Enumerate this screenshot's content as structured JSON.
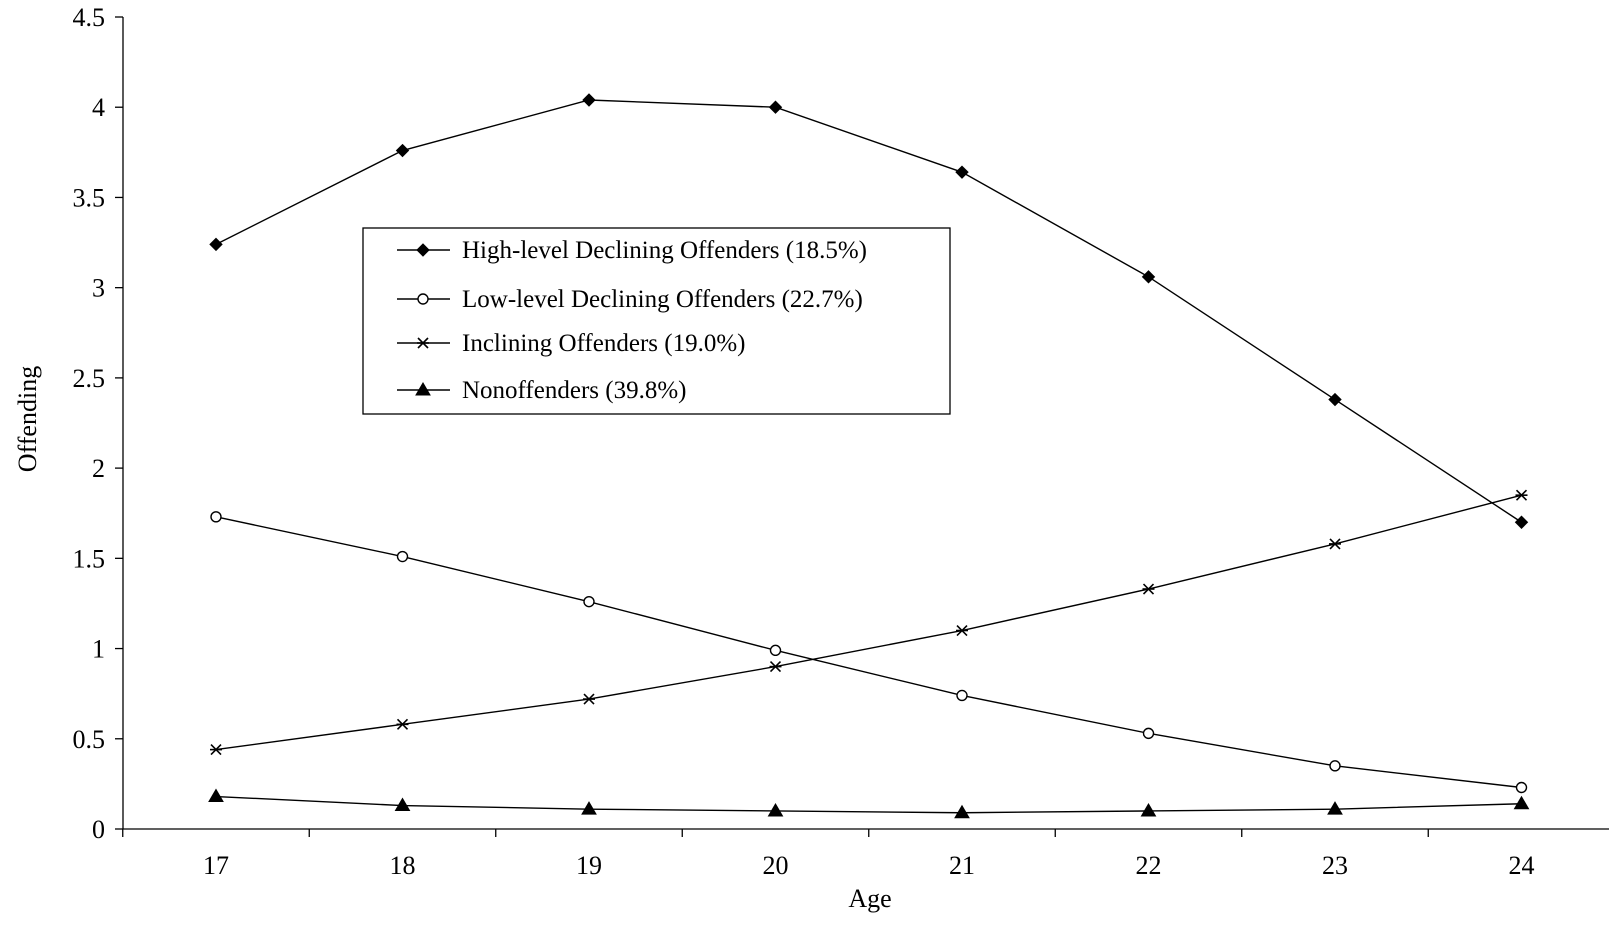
{
  "chart_data": {
    "type": "line",
    "title": "",
    "xlabel": "Age",
    "ylabel": "Offending",
    "x": [
      17,
      18,
      19,
      20,
      21,
      22,
      23,
      24
    ],
    "ylim": [
      0,
      4.5
    ],
    "yticks": [
      "0",
      "0.5",
      "1",
      "1.5",
      "2",
      "2.5",
      "3",
      "3.5",
      "4",
      "4.5"
    ],
    "grid": false,
    "legend_position": "upper-center",
    "series": [
      {
        "name": "High-level Declining Offenders (18.5%)",
        "marker": "diamond-filled",
        "values": [
          3.24,
          3.76,
          4.04,
          4.0,
          3.64,
          3.06,
          2.38,
          1.7
        ]
      },
      {
        "name": "Low-level Declining Offenders (22.7%)",
        "marker": "circle-open",
        "values": [
          1.73,
          1.51,
          1.26,
          0.99,
          0.74,
          0.53,
          0.35,
          0.23
        ]
      },
      {
        "name": "Inclining Offenders (19.0%)",
        "marker": "asterisk",
        "values": [
          0.44,
          0.58,
          0.72,
          0.9,
          1.1,
          1.33,
          1.58,
          1.85
        ]
      },
      {
        "name": "Nonoffenders (39.8%)",
        "marker": "triangle-filled",
        "values": [
          0.18,
          0.13,
          0.11,
          0.1,
          0.09,
          0.1,
          0.11,
          0.14
        ]
      }
    ],
    "colors": {
      "line": "#000000",
      "background": "#ffffff"
    }
  }
}
